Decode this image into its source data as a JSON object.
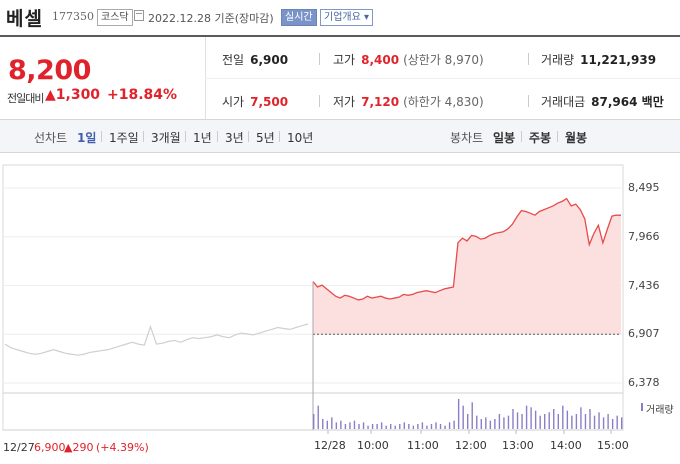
{
  "header": {
    "name": "베셀",
    "code": "177350",
    "market": "코스닥",
    "date": "2022.12.28 기준(장마감)",
    "live_label": "실시간",
    "info_label": "기업개요 ▾"
  },
  "price": {
    "current": "8,200",
    "change_label": "전일대비",
    "change": "▲1,300",
    "percent": "+18.84%"
  },
  "stats": {
    "prev_label": "전일",
    "prev": "6,900",
    "high_label": "고가",
    "high": "8,400",
    "upper_label": "(상한가 8,970)",
    "volume_label": "거래량",
    "volume": "11,221,939",
    "open_label": "시가",
    "open": "7,500",
    "low_label": "저가",
    "low": "7,120",
    "lower_label": "(하한가 4,830)",
    "amount_label": "거래대금",
    "amount": "87,964 백만"
  },
  "tabs": {
    "line_label": "선차트",
    "line": [
      "1일",
      "1주일",
      "3개월",
      "1년",
      "3년",
      "5년",
      "10년"
    ],
    "candle_label": "봉차트",
    "candle": [
      "일봉",
      "주봉",
      "월봉"
    ],
    "selected": "1일"
  },
  "footer": {
    "date": "12/27",
    "prev_close": "6,900",
    "change": "▲290",
    "percent": "(+4.39%)"
  },
  "chart_data": {
    "type": "area",
    "title": "",
    "ylim": [
      6378,
      8495
    ],
    "y_ticks": [
      "8,495",
      "7,966",
      "7,436",
      "6,907",
      "6,378"
    ],
    "x_ticks": [
      "12/28",
      "10:00",
      "11:00",
      "12:00",
      "13:00",
      "14:00",
      "15:00"
    ],
    "baseline": 6907,
    "legend": "거래량",
    "series": [
      {
        "name": "12/27",
        "color": "#cfcfcf",
        "values": [
          6800,
          6760,
          6740,
          6720,
          6700,
          6690,
          6700,
          6720,
          6740,
          6720,
          6700,
          6690,
          6680,
          6690,
          6710,
          6720,
          6730,
          6740,
          6760,
          6780,
          6800,
          6820,
          6800,
          6790,
          6990,
          6800,
          6810,
          6830,
          6840,
          6820,
          6850,
          6870,
          6860,
          6870,
          6880,
          6900,
          6880,
          6870,
          6900,
          6920,
          6910,
          6900,
          6920,
          6940,
          6960,
          6980,
          6970,
          6960,
          6980,
          7000,
          7020
        ]
      },
      {
        "name": "12/28",
        "color": "#e84a4a",
        "values": [
          7480,
          7420,
          7440,
          7400,
          7360,
          7320,
          7300,
          7330,
          7320,
          7300,
          7280,
          7290,
          7320,
          7300,
          7310,
          7320,
          7300,
          7290,
          7300,
          7310,
          7340,
          7330,
          7340,
          7360,
          7370,
          7380,
          7370,
          7360,
          7380,
          7400,
          7410,
          7420,
          7900,
          7950,
          7920,
          7980,
          7970,
          7940,
          7950,
          7980,
          8000,
          8010,
          8020,
          8050,
          8100,
          8180,
          8250,
          8240,
          8220,
          8200,
          8240,
          8260,
          8280,
          8300,
          8330,
          8350,
          8380,
          8300,
          8320,
          8260,
          8160,
          7880,
          8000,
          8090,
          7900,
          8050,
          8190,
          8200,
          8200
        ]
      }
    ],
    "volume": [
      9,
      14,
      6,
      5,
      7,
      4,
      5,
      3,
      4,
      5,
      3,
      4,
      2,
      3,
      3,
      4,
      2,
      3,
      2,
      3,
      4,
      3,
      2,
      3,
      4,
      2,
      3,
      4,
      3,
      2,
      4,
      5,
      18,
      14,
      9,
      16,
      8,
      6,
      7,
      5,
      6,
      9,
      7,
      8,
      12,
      10,
      9,
      14,
      13,
      11,
      8,
      9,
      10,
      12,
      9,
      14,
      11,
      8,
      9,
      13,
      9,
      12,
      8,
      10,
      7,
      9,
      6,
      8,
      7
    ]
  }
}
